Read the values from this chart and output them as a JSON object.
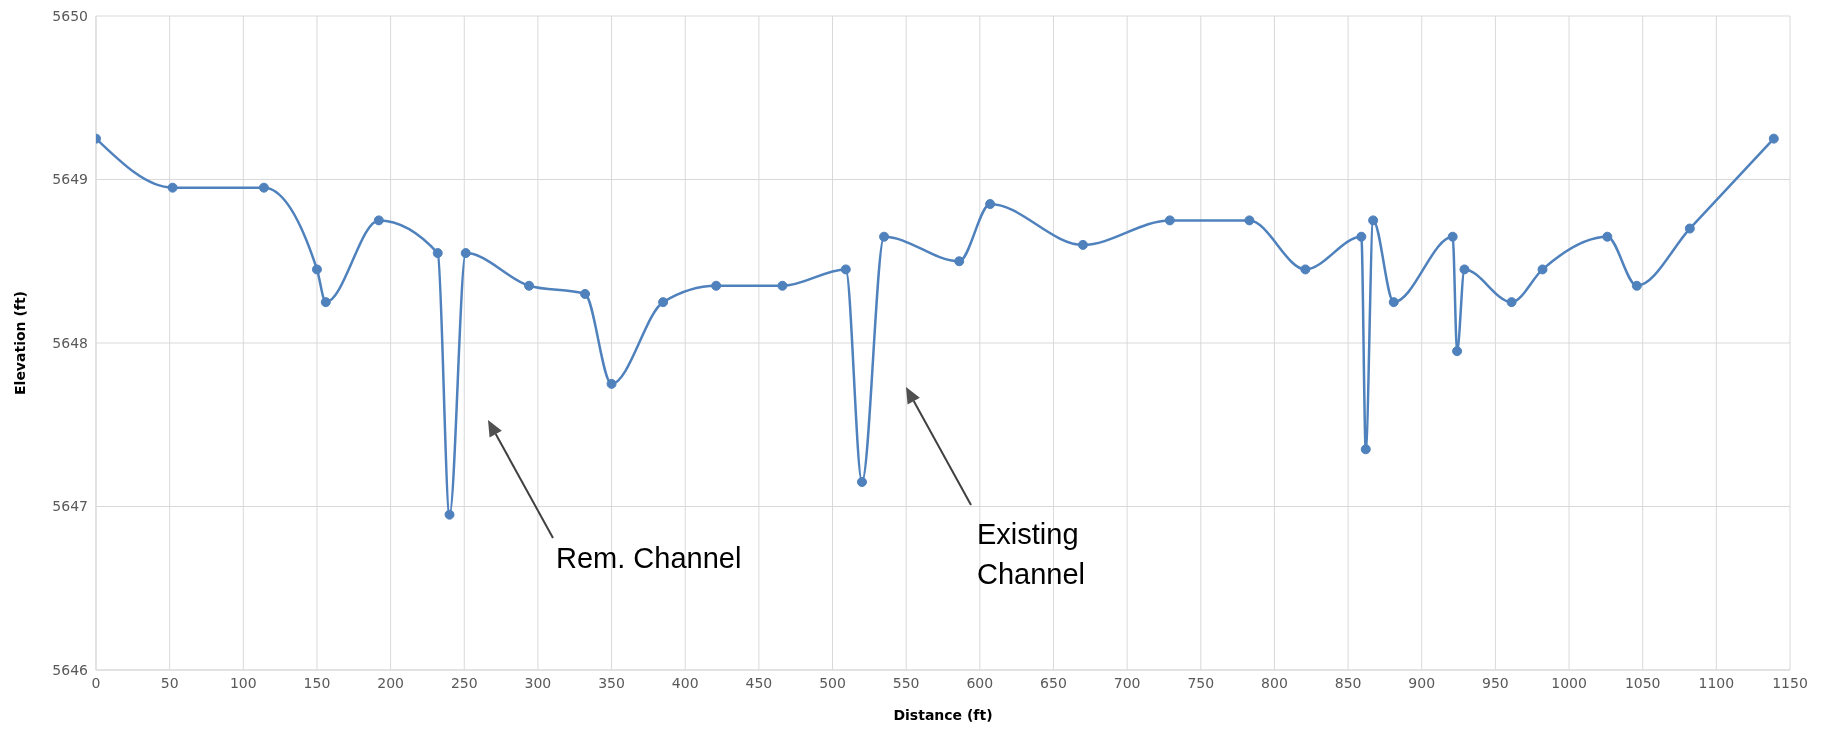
{
  "chart_data": {
    "type": "line",
    "xlabel": "Distance (ft)",
    "ylabel": "Elevation (ft)",
    "x": [
      0,
      52,
      114,
      150,
      156,
      192,
      232,
      240,
      251,
      294,
      332,
      350,
      385,
      421,
      466,
      509,
      520,
      535,
      586,
      607,
      670,
      729,
      783,
      821,
      859,
      862,
      867,
      881,
      921,
      924,
      929,
      961,
      982,
      1026,
      1046,
      1082,
      1139
    ],
    "series": [
      {
        "color": "#4f81bd",
        "values": [
          5649.25,
          5648.95,
          5648.95,
          5648.45,
          5648.25,
          5648.75,
          5648.55,
          5646.95,
          5648.55,
          5648.35,
          5648.3,
          5647.75,
          5648.25,
          5648.35,
          5648.35,
          5648.45,
          5647.15,
          5648.65,
          5648.5,
          5648.85,
          5648.6,
          5648.75,
          5648.75,
          5648.45,
          5648.65,
          5647.35,
          5648.75,
          5648.25,
          5648.65,
          5647.95,
          5648.45,
          5648.25,
          5648.45,
          5648.65,
          5648.35,
          5648.7,
          5649.25
        ]
      }
    ],
    "xlim": [
      0,
      1150
    ],
    "xticks": [
      0,
      50,
      100,
      150,
      200,
      250,
      300,
      350,
      400,
      450,
      500,
      550,
      600,
      650,
      700,
      750,
      800,
      850,
      900,
      950,
      1000,
      1050,
      1100,
      1150
    ],
    "ylim": [
      5646,
      5650
    ],
    "yticks": [
      5646,
      5647,
      5648,
      5649,
      5650
    ],
    "grid": true,
    "legend": false,
    "marker": "circle",
    "line_style": "solid",
    "annotations": [
      "Rem. Channel",
      "Existing\nChannel"
    ]
  }
}
